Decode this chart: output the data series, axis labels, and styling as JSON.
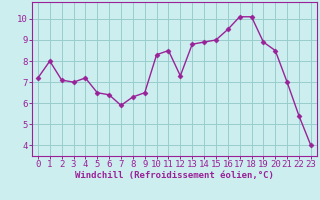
{
  "x": [
    0,
    1,
    2,
    3,
    4,
    5,
    6,
    7,
    8,
    9,
    10,
    11,
    12,
    13,
    14,
    15,
    16,
    17,
    18,
    19,
    20,
    21,
    22,
    23
  ],
  "y": [
    7.2,
    8.0,
    7.1,
    7.0,
    7.2,
    6.5,
    6.4,
    5.9,
    6.3,
    6.5,
    8.3,
    8.5,
    7.3,
    8.8,
    8.9,
    9.0,
    9.5,
    10.1,
    10.1,
    8.9,
    8.5,
    7.0,
    5.4,
    4.0
  ],
  "line_color": "#992299",
  "marker": "D",
  "marker_size": 2.5,
  "bg_color": "#cceeee",
  "grid_color": "#99cccc",
  "xlabel": "Windchill (Refroidissement éolien,°C)",
  "xlabel_fontsize": 6.5,
  "tick_fontsize": 6.5,
  "ylim": [
    3.5,
    10.8
  ],
  "xlim": [
    -0.5,
    23.5
  ],
  "yticks": [
    4,
    5,
    6,
    7,
    8,
    9,
    10
  ],
  "xticks": [
    0,
    1,
    2,
    3,
    4,
    5,
    6,
    7,
    8,
    9,
    10,
    11,
    12,
    13,
    14,
    15,
    16,
    17,
    18,
    19,
    20,
    21,
    22,
    23
  ],
  "linewidth": 1.0
}
